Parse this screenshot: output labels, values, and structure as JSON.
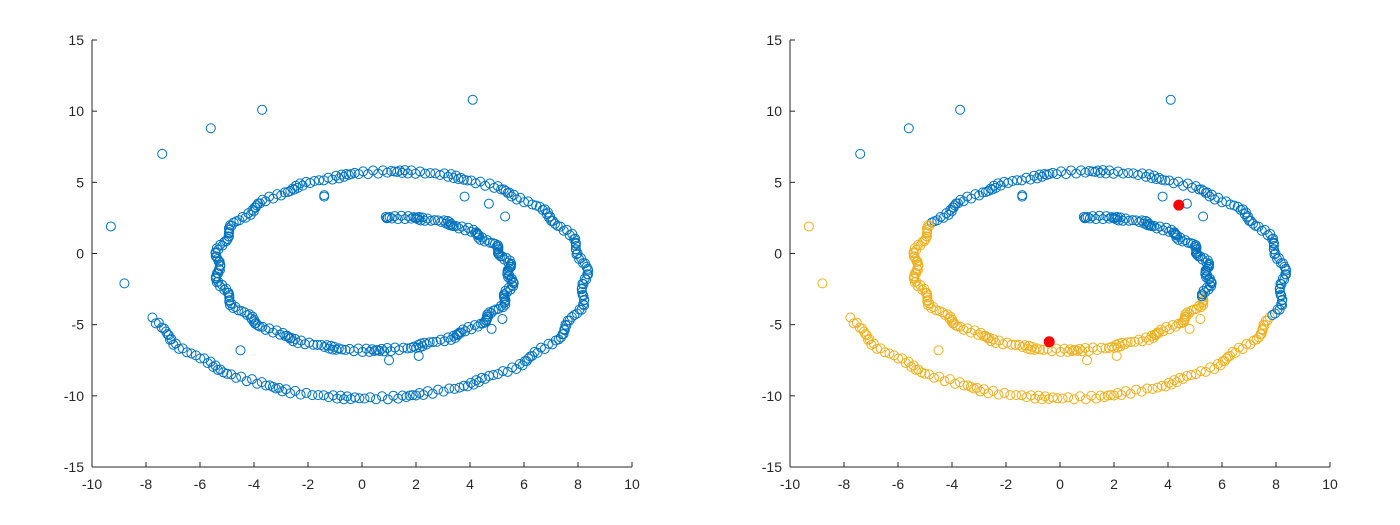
{
  "colors": {
    "cluster_1": "#0072BD",
    "cluster_2": "#EDB120",
    "centroid": "#FF0000",
    "axes": "#262626"
  },
  "chart_data": [
    {
      "type": "scatter",
      "title": "",
      "xlabel": "",
      "ylabel": "",
      "xlim": [
        -10,
        10
      ],
      "ylim": [
        -15,
        15
      ],
      "xticks": [
        -10,
        -8,
        -6,
        -4,
        -2,
        0,
        2,
        4,
        6,
        8,
        10
      ],
      "yticks": [
        -15,
        -10,
        -5,
        0,
        5,
        10,
        15
      ],
      "grid": false,
      "marker": "open-circle",
      "color": "#0072BD",
      "spiral": {
        "description_points": "dense spiral of ~500 points from (0.5, 2) winding outward",
        "param_start_deg": 90,
        "param_end_deg": 810,
        "x_center": 0.5,
        "y_center": -1.5
      },
      "outliers": [
        [
          -9.3,
          1.9
        ],
        [
          -8.8,
          -2.1
        ],
        [
          -7.4,
          7.0
        ],
        [
          -5.6,
          8.8
        ],
        [
          -3.7,
          10.1
        ],
        [
          4.1,
          10.8
        ],
        [
          -1.4,
          4.1
        ],
        [
          -1.4,
          4.0
        ],
        [
          3.8,
          4.0
        ],
        [
          4.7,
          3.5
        ],
        [
          5.3,
          2.6
        ],
        [
          -4.5,
          -6.8
        ],
        [
          1.0,
          -7.5
        ],
        [
          2.1,
          -7.2
        ],
        [
          4.8,
          -5.3
        ],
        [
          5.2,
          -4.6
        ]
      ]
    },
    {
      "type": "scatter",
      "title": "",
      "xlabel": "",
      "ylabel": "",
      "xlim": [
        -10,
        10
      ],
      "ylim": [
        -15,
        15
      ],
      "xticks": [
        -10,
        -8,
        -6,
        -4,
        -2,
        0,
        2,
        4,
        6,
        8,
        10
      ],
      "yticks": [
        -15,
        -10,
        -5,
        0,
        5,
        10,
        15
      ],
      "grid": false,
      "marker": "open-circle",
      "clusters": [
        "#0072BD",
        "#EDB120"
      ],
      "centroids": [
        [
          4.4,
          3.4
        ],
        [
          -0.4,
          -6.2
        ]
      ],
      "outliers": [
        [
          -9.3,
          1.9
        ],
        [
          -8.8,
          -2.1
        ],
        [
          -7.4,
          7.0
        ],
        [
          -5.6,
          8.8
        ],
        [
          -3.7,
          10.1
        ],
        [
          4.1,
          10.8
        ],
        [
          -1.4,
          4.1
        ],
        [
          -1.4,
          4.0
        ],
        [
          3.8,
          4.0
        ],
        [
          4.7,
          3.5
        ],
        [
          5.3,
          2.6
        ],
        [
          -4.5,
          -6.8
        ],
        [
          1.0,
          -7.5
        ],
        [
          2.1,
          -7.2
        ],
        [
          4.8,
          -5.3
        ],
        [
          5.2,
          -4.6
        ]
      ]
    }
  ]
}
